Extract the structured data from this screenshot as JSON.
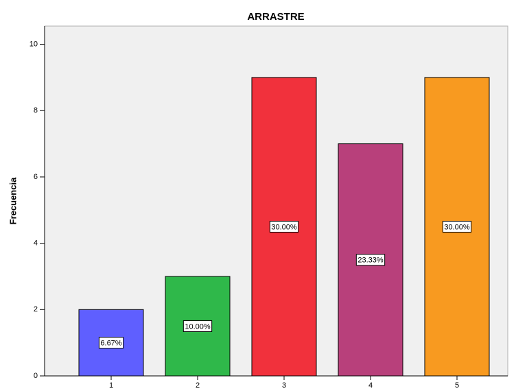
{
  "chart_data": {
    "type": "bar",
    "title": "ARRASTRE",
    "y_label": "Frecuencia",
    "categories": [
      "1",
      "2",
      "3",
      "4",
      "5"
    ],
    "values": [
      2,
      3,
      9,
      7,
      9
    ],
    "percentages": [
      6.67,
      10,
      30,
      23.33,
      30
    ],
    "percentage_labels": [
      "6.67%",
      "10.00%",
      "30.00%",
      "23.33%",
      "30.00%"
    ],
    "colors": [
      "#5f5fff",
      "#2fb84a",
      "#f1313c",
      "#b8407b",
      "#f89a20"
    ],
    "ylim": [
      0,
      10.55
    ],
    "yticks": [
      0,
      2,
      4,
      6,
      8,
      10
    ],
    "grid": false
  }
}
